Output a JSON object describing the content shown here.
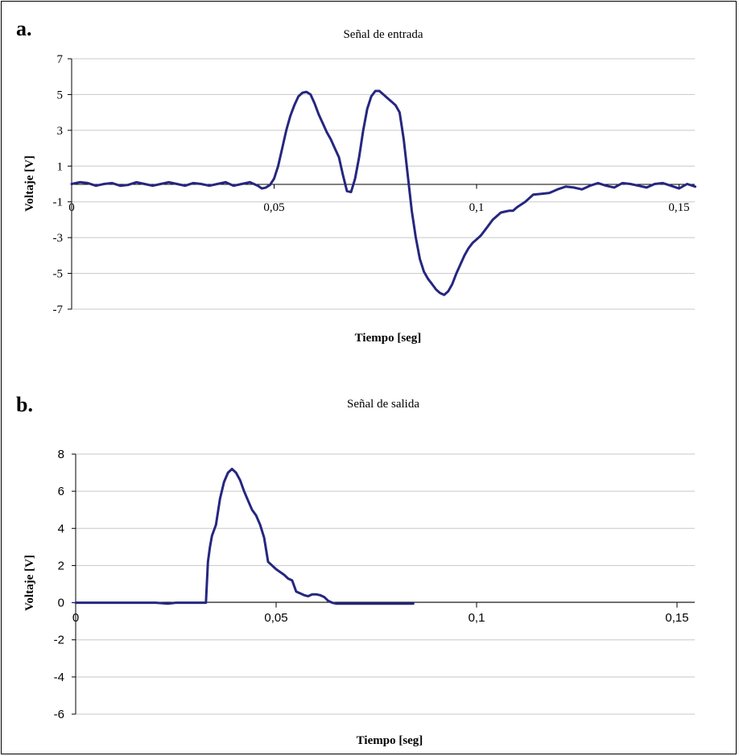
{
  "chart_data": [
    {
      "type": "line",
      "panel_label": "a.",
      "title": "Señal de entrada",
      "xlabel": "Tiempo [seg]",
      "ylabel": "Voltaje [V]",
      "xlim": [
        0,
        0.16
      ],
      "ylim": [
        -7,
        7
      ],
      "y_ticks": [
        -7,
        -5,
        -3,
        -1,
        1,
        3,
        5,
        7
      ],
      "x_ticks": [
        0,
        0.05,
        0.1,
        0.15
      ],
      "x_tick_labels": [
        "0",
        "0,05",
        "0,1",
        "0,15"
      ],
      "y_tick_labels": [
        "-7",
        "-5",
        "-3",
        "-1",
        "1",
        "3",
        "5",
        "7"
      ],
      "grid": true,
      "series": [
        {
          "color": "#262680",
          "x": [
            0,
            0.002,
            0.004,
            0.006,
            0.008,
            0.01,
            0.012,
            0.014,
            0.016,
            0.018,
            0.02,
            0.022,
            0.024,
            0.026,
            0.028,
            0.03,
            0.032,
            0.034,
            0.036,
            0.038,
            0.04,
            0.042,
            0.044,
            0.046,
            0.047,
            0.048,
            0.049,
            0.05,
            0.051,
            0.052,
            0.053,
            0.054,
            0.055,
            0.056,
            0.057,
            0.058,
            0.059,
            0.06,
            0.061,
            0.062,
            0.063,
            0.064,
            0.065,
            0.066,
            0.067,
            0.068,
            0.069,
            0.07,
            0.071,
            0.072,
            0.073,
            0.074,
            0.075,
            0.076,
            0.077,
            0.078,
            0.079,
            0.08,
            0.081,
            0.082,
            0.083,
            0.084,
            0.085,
            0.086,
            0.087,
            0.088,
            0.089,
            0.09,
            0.091,
            0.092,
            0.093,
            0.094,
            0.095,
            0.096,
            0.097,
            0.098,
            0.099,
            0.1,
            0.101,
            0.102,
            0.103,
            0.104,
            0.105,
            0.106,
            0.107,
            0.108,
            0.109,
            0.11,
            0.112,
            0.114,
            0.116,
            0.118,
            0.12,
            0.122,
            0.124,
            0.126,
            0.128,
            0.13,
            0.132,
            0.134,
            0.136,
            0.138,
            0.14,
            0.142,
            0.144,
            0.146,
            0.148,
            0.15,
            0.152,
            0.154
          ],
          "y": [
            0,
            0.1,
            0.05,
            -0.1,
            0.0,
            0.05,
            -0.1,
            -0.05,
            0.1,
            0.0,
            -0.1,
            0.0,
            0.1,
            0.0,
            -0.1,
            0.05,
            0.0,
            -0.1,
            0.0,
            0.1,
            -0.1,
            0.0,
            0.1,
            -0.1,
            -0.25,
            -0.2,
            -0.05,
            0.3,
            1.0,
            2.0,
            3.0,
            3.8,
            4.4,
            4.9,
            5.1,
            5.15,
            5.0,
            4.5,
            3.9,
            3.4,
            2.9,
            2.5,
            2.0,
            1.5,
            0.5,
            -0.4,
            -0.45,
            0.3,
            1.5,
            3.0,
            4.2,
            4.9,
            5.2,
            5.2,
            5.0,
            4.8,
            4.6,
            4.4,
            4.0,
            2.5,
            0.5,
            -1.5,
            -3.0,
            -4.2,
            -4.9,
            -5.3,
            -5.6,
            -5.9,
            -6.1,
            -6.2,
            -6.0,
            -5.6,
            -5.0,
            -4.5,
            -4.0,
            -3.6,
            -3.3,
            -3.1,
            -2.9,
            -2.6,
            -2.3,
            -2.0,
            -1.8,
            -1.6,
            -1.55,
            -1.5,
            -1.5,
            -1.3,
            -1.0,
            -0.6,
            -0.55,
            -0.5,
            -0.3,
            -0.15,
            -0.2,
            -0.3,
            -0.1,
            0.05,
            -0.1,
            -0.2,
            0.05,
            0.0,
            -0.1,
            -0.2,
            0.0,
            0.05,
            -0.1,
            -0.25,
            0.0,
            -0.15
          ]
        }
      ]
    },
    {
      "type": "line",
      "panel_label": "b.",
      "title": "Señal de salida",
      "xlabel": "Tiempo [seg]",
      "ylabel": "Voltaje [V]",
      "xlim": [
        0,
        0.16
      ],
      "ylim": [
        -6,
        8
      ],
      "y_ticks": [
        -6,
        -4,
        -2,
        0,
        2,
        4,
        6,
        8
      ],
      "x_ticks": [
        0,
        0.05,
        0.1,
        0.15
      ],
      "x_tick_labels": [
        "0",
        "0,05",
        "0,1",
        "0,15"
      ],
      "y_tick_labels": [
        "-6",
        "-4",
        "-2",
        "0",
        "2",
        "4",
        "6",
        "8"
      ],
      "grid": true,
      "series": [
        {
          "color": "#262680",
          "x": [
            0,
            0.01,
            0.02,
            0.023,
            0.025,
            0.03,
            0.0325,
            0.033,
            0.0335,
            0.034,
            0.035,
            0.036,
            0.037,
            0.038,
            0.039,
            0.04,
            0.041,
            0.042,
            0.043,
            0.044,
            0.045,
            0.046,
            0.047,
            0.048,
            0.049,
            0.05,
            0.051,
            0.052,
            0.053,
            0.054,
            0.055,
            0.056,
            0.057,
            0.058,
            0.059,
            0.06,
            0.061,
            0.062,
            0.063,
            0.064,
            0.065,
            0.066,
            0.07,
            0.075,
            0.08,
            0.0842
          ],
          "y": [
            0,
            0,
            0,
            -0.05,
            0,
            0,
            0,
            2.2,
            3.0,
            3.6,
            4.2,
            5.6,
            6.5,
            7.0,
            7.2,
            7.0,
            6.6,
            6.0,
            5.5,
            5.0,
            4.7,
            4.2,
            3.5,
            2.2,
            2.0,
            1.8,
            1.65,
            1.5,
            1.3,
            1.2,
            0.6,
            0.5,
            0.4,
            0.35,
            0.45,
            0.45,
            0.4,
            0.3,
            0.1,
            0.0,
            -0.05,
            -0.05,
            -0.05,
            -0.05,
            -0.05,
            -0.05
          ]
        }
      ]
    }
  ]
}
